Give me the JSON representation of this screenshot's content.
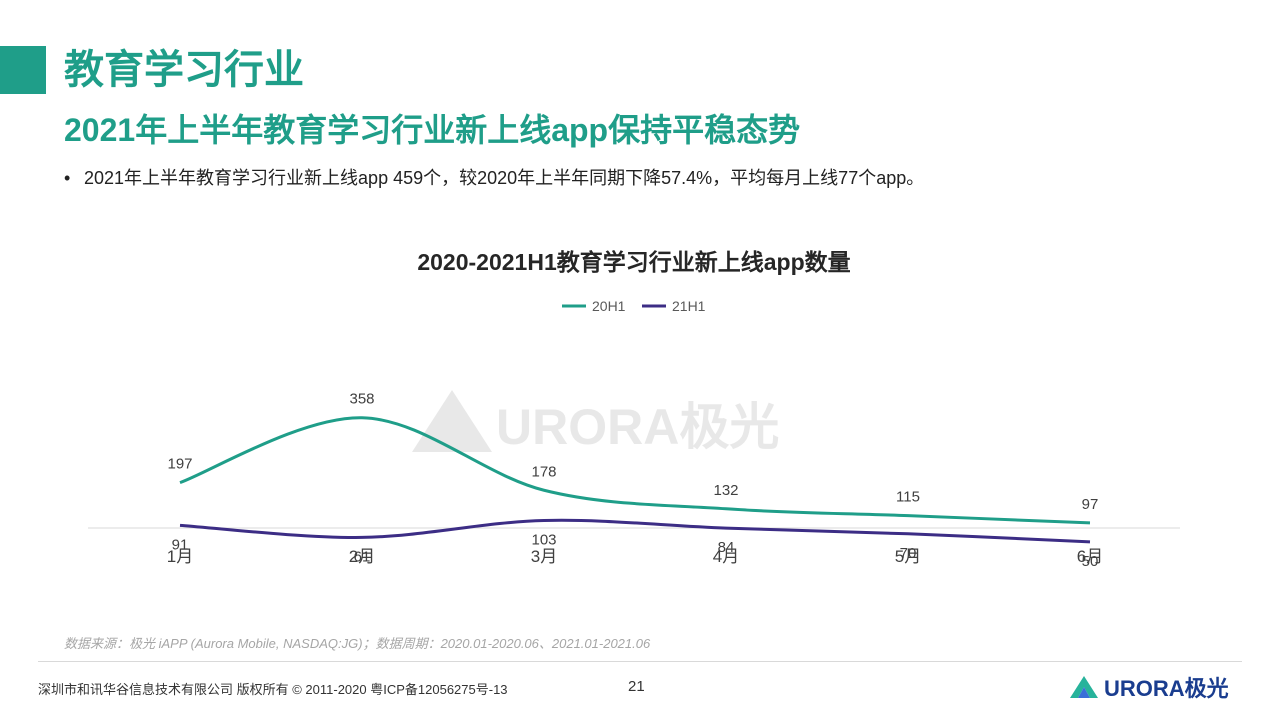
{
  "header": {
    "title": "教育学习行业",
    "subtitle": "2021年上半年教育学习行业新上线app保持平稳态势",
    "bullet": "2021年上半年教育学习行业新上线app  459个，较2020年上半年同期下降57.4%，平均每月上线77个app。"
  },
  "colors": {
    "accent": "#1f9e89",
    "series_20h1": "#1f9e89",
    "series_21h1": "#3c2d85"
  },
  "chart_data": {
    "type": "line",
    "title": "2020-2021H1教育学习行业新上线app数量",
    "categories": [
      "1月",
      "2月",
      "3月",
      "4月",
      "5月",
      "6月"
    ],
    "series": [
      {
        "name": "20H1",
        "values": [
          197,
          358,
          178,
          132,
          115,
          97
        ]
      },
      {
        "name": "21H1",
        "values": [
          91,
          61,
          103,
          84,
          70,
          50
        ]
      }
    ],
    "ylim": [
      0,
      420
    ],
    "legend": "top-center",
    "grid": false,
    "watermark": "URORA极光"
  },
  "footer": {
    "source": "数据来源：极光 iAPP (Aurora Mobile, NASDAQ:JG)；数据周期：2020.01-2020.06、2021.01-2021.06",
    "copyright": "深圳市和讯华谷信息技术有限公司  版权所有 © 2011-2020 粤ICP备12056275号-13",
    "page_number": "21",
    "logo_text": "URORA极光"
  }
}
